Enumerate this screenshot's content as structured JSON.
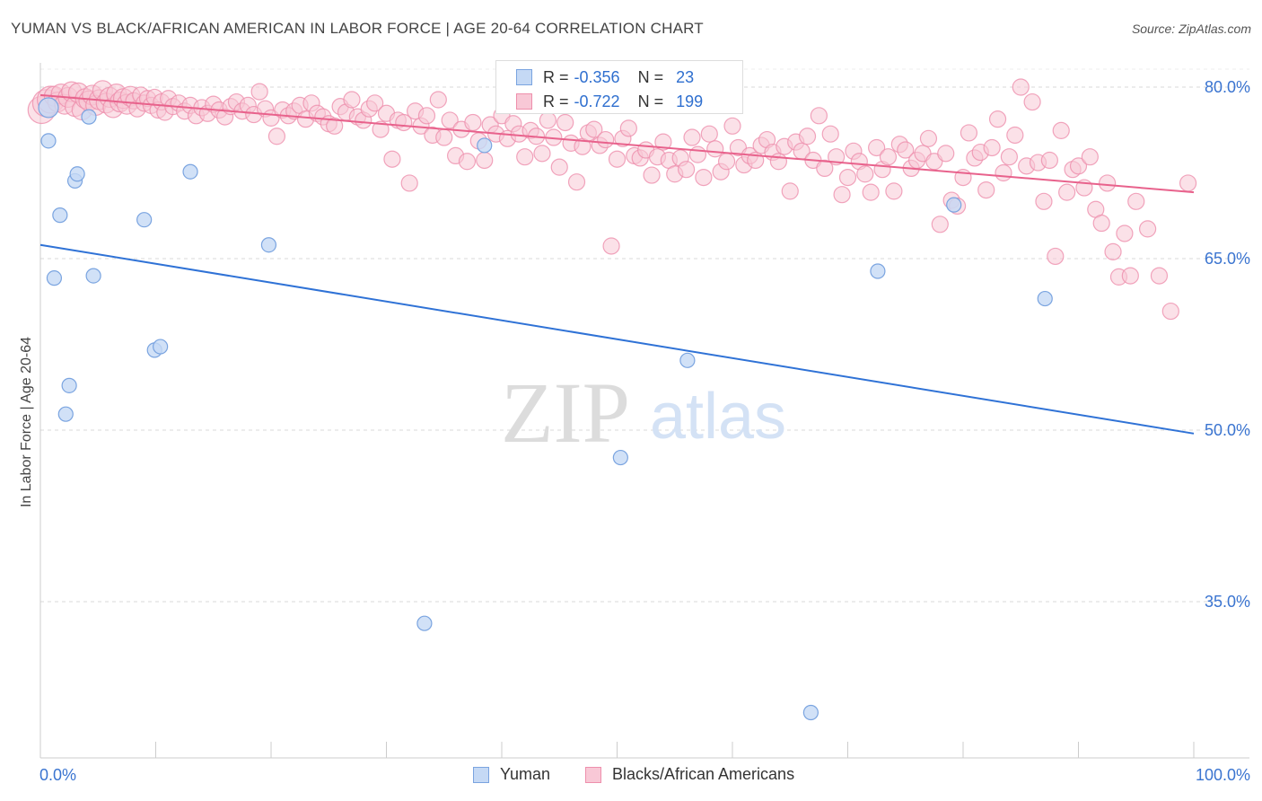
{
  "title": "YUMAN VS BLACK/AFRICAN AMERICAN IN LABOR FORCE | AGE 20-64 CORRELATION CHART",
  "source": "Source: ZipAtlas.com",
  "watermark": {
    "zip": "ZIP",
    "atlas": "atlas"
  },
  "legend_top": {
    "rows": [
      {
        "r_label": "R =",
        "r_value": "-0.356",
        "n_label": "N =",
        "n_value": "23"
      },
      {
        "r_label": "R =",
        "r_value": "-0.722",
        "n_label": "N =",
        "n_value": "199"
      }
    ]
  },
  "legend_bottom": {
    "series1": "Yuman",
    "series2": "Blacks/African Americans"
  },
  "colors": {
    "yuman_fill": "#c5d9f5",
    "yuman_stroke": "#7aa4e0",
    "yuman_line": "#2f72d6",
    "black_fill": "#f8c8d6",
    "black_stroke": "#ee8fac",
    "black_line": "#e8628c",
    "tick_label": "#3a74d0",
    "grid": "#d9d9d9"
  },
  "chart_data": {
    "type": "scatter",
    "title": "YUMAN VS BLACK/AFRICAN AMERICAN IN LABOR FORCE | AGE 20-64 CORRELATION CHART",
    "xlabel": "",
    "ylabel": "In Labor Force | Age 20-64",
    "xlim": [
      0,
      100
    ],
    "ylim": [
      20,
      82
    ],
    "x_tick_labels": [
      "0.0%",
      "100.0%"
    ],
    "y_ticks": [
      35,
      50,
      65,
      80
    ],
    "y_tick_labels": [
      "35.0%",
      "50.0%",
      "65.0%",
      "80.0%"
    ],
    "grid": true,
    "legend_position": "bottom",
    "series": [
      {
        "name": "Yuman",
        "r": -0.356,
        "n": 23,
        "trend": [
          [
            0,
            66.2
          ],
          [
            100,
            49.7
          ]
        ],
        "points": [
          [
            0.7,
            78.2
          ],
          [
            0.7,
            75.3
          ],
          [
            1.2,
            63.3
          ],
          [
            1.7,
            68.8
          ],
          [
            2.2,
            51.4
          ],
          [
            2.5,
            53.9
          ],
          [
            3.0,
            71.8
          ],
          [
            3.2,
            72.4
          ],
          [
            4.2,
            77.4
          ],
          [
            4.6,
            63.5
          ],
          [
            9.0,
            68.4
          ],
          [
            9.9,
            57.0
          ],
          [
            10.4,
            57.3
          ],
          [
            13.0,
            72.6
          ],
          [
            19.8,
            66.2
          ],
          [
            33.3,
            33.1
          ],
          [
            38.5,
            74.9
          ],
          [
            50.3,
            47.6
          ],
          [
            56.1,
            56.1
          ],
          [
            66.8,
            25.3
          ],
          [
            72.6,
            63.9
          ],
          [
            79.2,
            69.7
          ],
          [
            87.1,
            61.5
          ]
        ]
      },
      {
        "name": "Blacks/African Americans",
        "r": -0.722,
        "n": 199,
        "trend": [
          [
            0,
            79.3
          ],
          [
            100,
            70.8
          ]
        ],
        "points": [
          [
            0.1,
            78.0
          ],
          [
            0.5,
            78.6
          ],
          [
            0.9,
            78.9
          ],
          [
            1.2,
            79.2
          ],
          [
            1.5,
            78.7
          ],
          [
            1.8,
            79.4
          ],
          [
            2.1,
            78.5
          ],
          [
            2.4,
            79.1
          ],
          [
            2.7,
            79.6
          ],
          [
            3.0,
            78.3
          ],
          [
            3.3,
            79.5
          ],
          [
            3.6,
            78.0
          ],
          [
            3.9,
            79.0
          ],
          [
            4.2,
            78.8
          ],
          [
            4.5,
            79.3
          ],
          [
            4.8,
            78.4
          ],
          [
            5.1,
            78.9
          ],
          [
            5.4,
            79.7
          ],
          [
            5.7,
            78.6
          ],
          [
            6.0,
            79.1
          ],
          [
            6.3,
            78.2
          ],
          [
            6.6,
            79.4
          ],
          [
            6.9,
            78.7
          ],
          [
            7.2,
            79.0
          ],
          [
            7.5,
            78.5
          ],
          [
            7.8,
            79.2
          ],
          [
            8.1,
            78.8
          ],
          [
            8.4,
            78.1
          ],
          [
            8.7,
            79.3
          ],
          [
            9.0,
            78.6
          ],
          [
            9.3,
            79.0
          ],
          [
            9.6,
            78.4
          ],
          [
            9.9,
            79.1
          ],
          [
            10.2,
            78.0
          ],
          [
            10.5,
            78.7
          ],
          [
            10.8,
            77.8
          ],
          [
            11.1,
            79.0
          ],
          [
            11.5,
            78.3
          ],
          [
            12.0,
            78.6
          ],
          [
            12.5,
            77.9
          ],
          [
            13.0,
            78.4
          ],
          [
            13.5,
            77.5
          ],
          [
            14.0,
            78.2
          ],
          [
            14.5,
            77.7
          ],
          [
            15.0,
            78.5
          ],
          [
            15.5,
            78.0
          ],
          [
            16.0,
            77.4
          ],
          [
            16.5,
            78.3
          ],
          [
            17.0,
            78.7
          ],
          [
            17.5,
            77.9
          ],
          [
            18.0,
            78.4
          ],
          [
            18.5,
            77.6
          ],
          [
            19.0,
            79.6
          ],
          [
            19.5,
            78.1
          ],
          [
            20.0,
            77.3
          ],
          [
            20.5,
            75.7
          ],
          [
            21.0,
            78.0
          ],
          [
            21.5,
            77.5
          ],
          [
            22.0,
            77.9
          ],
          [
            22.5,
            78.4
          ],
          [
            23.0,
            77.2
          ],
          [
            23.5,
            78.6
          ],
          [
            24.0,
            77.7
          ],
          [
            24.5,
            77.4
          ],
          [
            25.0,
            76.8
          ],
          [
            25.5,
            76.6
          ],
          [
            26.0,
            78.3
          ],
          [
            26.5,
            77.8
          ],
          [
            27.0,
            78.9
          ],
          [
            27.5,
            77.4
          ],
          [
            28.0,
            77.1
          ],
          [
            28.5,
            78.1
          ],
          [
            29.0,
            78.6
          ],
          [
            29.5,
            76.3
          ],
          [
            30.0,
            77.7
          ],
          [
            30.5,
            73.7
          ],
          [
            31.0,
            77.1
          ],
          [
            31.5,
            76.9
          ],
          [
            32.0,
            71.6
          ],
          [
            32.5,
            77.9
          ],
          [
            33.0,
            76.6
          ],
          [
            33.5,
            77.5
          ],
          [
            34.0,
            75.8
          ],
          [
            34.5,
            78.9
          ],
          [
            35.0,
            75.6
          ],
          [
            35.5,
            77.1
          ],
          [
            36.0,
            74.0
          ],
          [
            36.5,
            76.3
          ],
          [
            37.0,
            73.5
          ],
          [
            37.5,
            76.9
          ],
          [
            38.0,
            75.3
          ],
          [
            38.5,
            73.6
          ],
          [
            39.0,
            76.7
          ],
          [
            39.5,
            75.9
          ],
          [
            40.0,
            77.5
          ],
          [
            40.5,
            75.5
          ],
          [
            41.0,
            76.8
          ],
          [
            41.5,
            75.9
          ],
          [
            42.0,
            73.9
          ],
          [
            42.5,
            76.2
          ],
          [
            43.0,
            75.7
          ],
          [
            43.5,
            74.2
          ],
          [
            44.0,
            77.1
          ],
          [
            44.5,
            75.6
          ],
          [
            45.0,
            73.0
          ],
          [
            45.5,
            76.9
          ],
          [
            46.0,
            75.1
          ],
          [
            46.5,
            71.7
          ],
          [
            47.0,
            74.8
          ],
          [
            47.5,
            76.0
          ],
          [
            48.0,
            76.3
          ],
          [
            48.5,
            74.9
          ],
          [
            49.0,
            75.4
          ],
          [
            49.5,
            66.1
          ],
          [
            50.0,
            73.7
          ],
          [
            50.5,
            75.5
          ],
          [
            51.0,
            76.4
          ],
          [
            51.5,
            74.0
          ],
          [
            52.0,
            73.8
          ],
          [
            52.5,
            74.5
          ],
          [
            53.0,
            72.3
          ],
          [
            53.5,
            73.9
          ],
          [
            54.0,
            75.2
          ],
          [
            54.5,
            73.6
          ],
          [
            55.0,
            72.4
          ],
          [
            55.5,
            73.8
          ],
          [
            56.0,
            72.8
          ],
          [
            56.5,
            75.6
          ],
          [
            57.0,
            74.1
          ],
          [
            57.5,
            72.1
          ],
          [
            58.0,
            75.9
          ],
          [
            58.5,
            74.6
          ],
          [
            59.0,
            72.6
          ],
          [
            59.5,
            73.5
          ],
          [
            60.0,
            76.6
          ],
          [
            60.5,
            74.7
          ],
          [
            61.0,
            73.2
          ],
          [
            61.5,
            74.0
          ],
          [
            62.0,
            73.6
          ],
          [
            62.5,
            74.9
          ],
          [
            63.0,
            75.4
          ],
          [
            63.5,
            74.3
          ],
          [
            64.0,
            73.5
          ],
          [
            64.5,
            74.8
          ],
          [
            65.0,
            70.9
          ],
          [
            65.5,
            75.2
          ],
          [
            66.0,
            74.4
          ],
          [
            66.5,
            75.7
          ],
          [
            67.0,
            73.6
          ],
          [
            67.5,
            77.5
          ],
          [
            68.0,
            72.9
          ],
          [
            68.5,
            75.9
          ],
          [
            69.0,
            73.9
          ],
          [
            69.5,
            70.6
          ],
          [
            70.0,
            72.1
          ],
          [
            70.5,
            74.4
          ],
          [
            71.0,
            73.5
          ],
          [
            71.5,
            72.4
          ],
          [
            72.0,
            70.8
          ],
          [
            72.5,
            74.7
          ],
          [
            73.0,
            72.8
          ],
          [
            73.5,
            73.9
          ],
          [
            74.0,
            70.9
          ],
          [
            74.5,
            75.0
          ],
          [
            75.0,
            74.5
          ],
          [
            75.5,
            72.9
          ],
          [
            76.0,
            73.6
          ],
          [
            76.5,
            74.2
          ],
          [
            77.0,
            75.5
          ],
          [
            77.5,
            73.5
          ],
          [
            78.0,
            68.0
          ],
          [
            78.5,
            74.2
          ],
          [
            79.0,
            70.1
          ],
          [
            79.5,
            69.6
          ],
          [
            80.0,
            72.1
          ],
          [
            80.5,
            76.0
          ],
          [
            81.0,
            73.8
          ],
          [
            81.5,
            74.3
          ],
          [
            82.0,
            71.0
          ],
          [
            82.5,
            74.7
          ],
          [
            83.0,
            77.2
          ],
          [
            83.5,
            72.5
          ],
          [
            84.0,
            73.9
          ],
          [
            84.5,
            75.8
          ],
          [
            85.0,
            80.0
          ],
          [
            85.5,
            73.1
          ],
          [
            86.0,
            78.7
          ],
          [
            86.5,
            73.4
          ],
          [
            87.0,
            70.0
          ],
          [
            87.5,
            73.6
          ],
          [
            88.0,
            65.2
          ],
          [
            88.5,
            76.2
          ],
          [
            89.0,
            70.8
          ],
          [
            89.5,
            72.8
          ],
          [
            90.0,
            73.1
          ],
          [
            90.5,
            71.2
          ],
          [
            91.0,
            73.9
          ],
          [
            91.5,
            69.3
          ],
          [
            92.0,
            68.1
          ],
          [
            92.5,
            71.6
          ],
          [
            93.0,
            65.6
          ],
          [
            93.5,
            63.4
          ],
          [
            94.0,
            67.2
          ],
          [
            94.5,
            63.5
          ],
          [
            95.0,
            70.0
          ],
          [
            96.0,
            67.6
          ],
          [
            97.0,
            63.5
          ],
          [
            98.0,
            60.4
          ],
          [
            99.5,
            71.6
          ]
        ]
      }
    ]
  }
}
